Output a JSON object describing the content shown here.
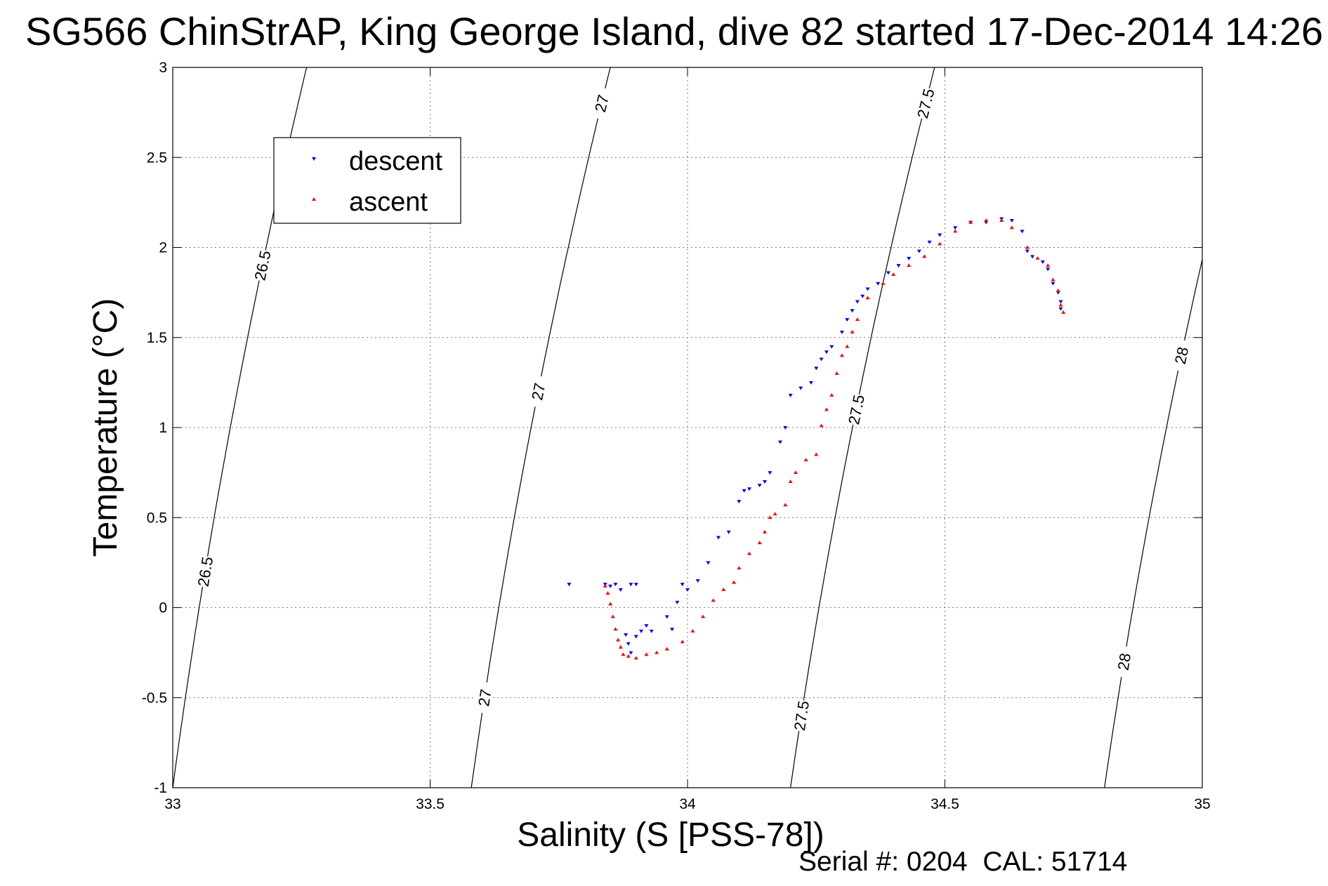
{
  "chart_data": {
    "type": "scatter",
    "title": "SG566 ChinStrAP, King George Island, dive 82 started 17-Dec-2014 14:26",
    "xlabel": "Salinity (S [PSS-78])",
    "ylabel": "Temperature (°C)",
    "xlim": [
      33,
      35
    ],
    "ylim": [
      -1,
      3
    ],
    "xticks": [
      "33",
      "33.5",
      "34",
      "34.5",
      "35"
    ],
    "yticks": [
      "-1",
      "-0.5",
      "0",
      "0.5",
      "1",
      "1.5",
      "2",
      "2.5",
      "3"
    ],
    "grid": true,
    "legend": "top-left",
    "footer": "Serial #: 0204  CAL: 51714",
    "isopycnals": [
      {
        "label": "26.5",
        "x_at_ymin": 33.0,
        "x_at_ymax": 33.26,
        "labels_at_y": [
          0.2,
          1.9
        ]
      },
      {
        "label": "27",
        "x_at_ymin": 33.58,
        "x_at_ymax": 33.85,
        "labels_at_y": [
          -0.5,
          1.2,
          2.8
        ]
      },
      {
        "label": "27.5",
        "x_at_ymin": 34.2,
        "x_at_ymax": 34.48,
        "labels_at_y": [
          -0.6,
          1.1,
          2.8
        ]
      },
      {
        "label": "28",
        "x_at_ymin": 34.81,
        "x_at_ymax": 35.09,
        "labels_at_y": [
          -0.3,
          1.4
        ]
      }
    ],
    "series": [
      {
        "name": "descent",
        "color": "#0000ff",
        "marker": "triangle-down",
        "points": [
          [
            33.77,
            0.13
          ],
          [
            33.84,
            0.13
          ],
          [
            33.85,
            0.12
          ],
          [
            33.86,
            0.13
          ],
          [
            33.87,
            0.1
          ],
          [
            33.89,
            0.13
          ],
          [
            33.9,
            0.13
          ],
          [
            33.88,
            -0.15
          ],
          [
            33.885,
            -0.2
          ],
          [
            33.89,
            -0.25
          ],
          [
            33.9,
            -0.16
          ],
          [
            33.91,
            -0.13
          ],
          [
            33.92,
            -0.1
          ],
          [
            33.93,
            -0.13
          ],
          [
            33.96,
            -0.05
          ],
          [
            33.97,
            -0.12
          ],
          [
            33.98,
            0.03
          ],
          [
            33.99,
            0.13
          ],
          [
            34.0,
            0.1
          ],
          [
            34.02,
            0.15
          ],
          [
            34.04,
            0.25
          ],
          [
            34.06,
            0.39
          ],
          [
            34.08,
            0.42
          ],
          [
            34.1,
            0.59
          ],
          [
            34.11,
            0.65
          ],
          [
            34.12,
            0.66
          ],
          [
            34.14,
            0.68
          ],
          [
            34.15,
            0.7
          ],
          [
            34.16,
            0.75
          ],
          [
            34.18,
            0.92
          ],
          [
            34.19,
            1.0
          ],
          [
            34.2,
            1.18
          ],
          [
            34.22,
            1.22
          ],
          [
            34.24,
            1.25
          ],
          [
            34.25,
            1.33
          ],
          [
            34.26,
            1.38
          ],
          [
            34.27,
            1.42
          ],
          [
            34.28,
            1.45
          ],
          [
            34.3,
            1.53
          ],
          [
            34.31,
            1.6
          ],
          [
            34.32,
            1.65
          ],
          [
            34.33,
            1.7
          ],
          [
            34.34,
            1.73
          ],
          [
            34.35,
            1.77
          ],
          [
            34.37,
            1.8
          ],
          [
            34.39,
            1.86
          ],
          [
            34.41,
            1.9
          ],
          [
            34.43,
            1.94
          ],
          [
            34.45,
            1.98
          ],
          [
            34.47,
            2.03
          ],
          [
            34.49,
            2.07
          ],
          [
            34.52,
            2.11
          ],
          [
            34.55,
            2.14
          ],
          [
            34.58,
            2.14
          ],
          [
            34.61,
            2.16
          ],
          [
            34.63,
            2.15
          ],
          [
            34.65,
            2.09
          ],
          [
            34.66,
            1.98
          ],
          [
            34.67,
            1.95
          ],
          [
            34.69,
            1.92
          ],
          [
            34.7,
            1.88
          ],
          [
            34.71,
            1.8
          ],
          [
            34.72,
            1.75
          ],
          [
            34.725,
            1.7
          ],
          [
            34.725,
            1.66
          ]
        ]
      },
      {
        "name": "ascent",
        "color": "#ff0000",
        "marker": "triangle-up",
        "points": [
          [
            33.84,
            0.12
          ],
          [
            33.845,
            0.08
          ],
          [
            33.85,
            0.02
          ],
          [
            33.855,
            -0.05
          ],
          [
            33.86,
            -0.12
          ],
          [
            33.865,
            -0.18
          ],
          [
            33.87,
            -0.22
          ],
          [
            33.875,
            -0.26
          ],
          [
            33.885,
            -0.27
          ],
          [
            33.9,
            -0.28
          ],
          [
            33.92,
            -0.26
          ],
          [
            33.94,
            -0.25
          ],
          [
            33.96,
            -0.23
          ],
          [
            33.99,
            -0.19
          ],
          [
            34.01,
            -0.13
          ],
          [
            34.03,
            -0.05
          ],
          [
            34.05,
            0.04
          ],
          [
            34.07,
            0.1
          ],
          [
            34.09,
            0.14
          ],
          [
            34.1,
            0.22
          ],
          [
            34.12,
            0.3
          ],
          [
            34.14,
            0.36
          ],
          [
            34.15,
            0.42
          ],
          [
            34.16,
            0.5
          ],
          [
            34.17,
            0.52
          ],
          [
            34.19,
            0.57
          ],
          [
            34.2,
            0.7
          ],
          [
            34.21,
            0.75
          ],
          [
            34.23,
            0.82
          ],
          [
            34.25,
            0.85
          ],
          [
            34.26,
            1.01
          ],
          [
            34.27,
            1.1
          ],
          [
            34.28,
            1.18
          ],
          [
            34.29,
            1.3
          ],
          [
            34.3,
            1.4
          ],
          [
            34.31,
            1.45
          ],
          [
            34.32,
            1.53
          ],
          [
            34.33,
            1.6
          ],
          [
            34.35,
            1.72
          ],
          [
            34.38,
            1.8
          ],
          [
            34.4,
            1.85
          ],
          [
            34.43,
            1.9
          ],
          [
            34.46,
            1.95
          ],
          [
            34.49,
            2.02
          ],
          [
            34.52,
            2.09
          ],
          [
            34.55,
            2.14
          ],
          [
            34.58,
            2.15
          ],
          [
            34.61,
            2.15
          ],
          [
            34.63,
            2.11
          ],
          [
            34.66,
            2.0
          ],
          [
            34.68,
            1.94
          ],
          [
            34.7,
            1.9
          ],
          [
            34.71,
            1.82
          ],
          [
            34.72,
            1.76
          ],
          [
            34.725,
            1.68
          ],
          [
            34.73,
            1.64
          ]
        ]
      }
    ]
  }
}
